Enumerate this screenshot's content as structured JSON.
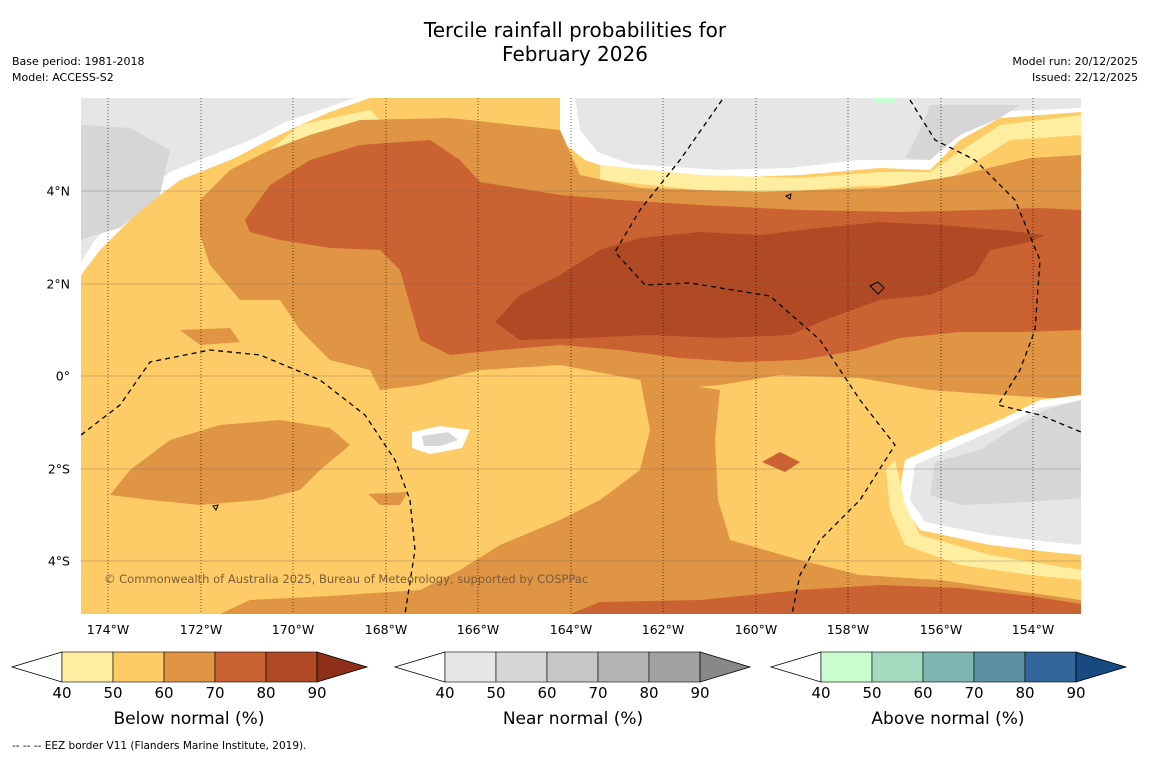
{
  "title_line1": "Tercile rainfall probabilities for",
  "title_line2": "February 2026",
  "meta_left": [
    "Base period: 1981-2018",
    "Model: ACCESS-S2"
  ],
  "meta_right": [
    "Model run: 20/12/2025",
    "Issued: 22/12/2025"
  ],
  "copyright": "© Commonwealth of Australia 2025, Bureau of Meteorology, supported by COSPPac",
  "lon_labels": [
    "174°W",
    "172°W",
    "170°W",
    "168°W",
    "166°W",
    "164°W",
    "162°W",
    "160°W",
    "158°W",
    "156°W",
    "154°W"
  ],
  "lat_labels": [
    "4°N",
    "2°N",
    "0°",
    "2°S",
    "4°S"
  ],
  "colorbars": [
    {
      "title": "Below normal (%)",
      "ticks": [
        "40",
        "50",
        "60",
        "70",
        "80",
        "90"
      ],
      "colors": [
        "#ffffff",
        "#ffeda0",
        "#fecc66",
        "#e09544",
        "#cb6232",
        "#b04a24",
        "#8e2f1a"
      ]
    },
    {
      "title": "Near normal (%)",
      "ticks": [
        "40",
        "50",
        "60",
        "70",
        "80",
        "90"
      ],
      "colors": [
        "#ffffff",
        "#e6e6e6",
        "#d6d6d6",
        "#c6c6c6",
        "#b4b4b4",
        "#a2a2a2",
        "#888888"
      ]
    },
    {
      "title": "Above normal (%)",
      "ticks": [
        "40",
        "50",
        "60",
        "70",
        "80",
        "90"
      ],
      "colors": [
        "#ffffff",
        "#c9fcce",
        "#a3dabf",
        "#7fb5b1",
        "#5b91a0",
        "#33669a",
        "#174a80"
      ]
    }
  ],
  "footnote": "--  --  -- EEZ border V11 (Flanders Marine Institute, 2019).",
  "map_colors": {
    "below_50": "#ffeda0",
    "below_60": "#fecc66",
    "below_70": "#e09544",
    "below_80": "#cb6232",
    "below_90": "#b04a24",
    "near_50": "#e6e6e6",
    "near_60": "#d6d6d6",
    "above_50": "#c9fcce"
  }
}
